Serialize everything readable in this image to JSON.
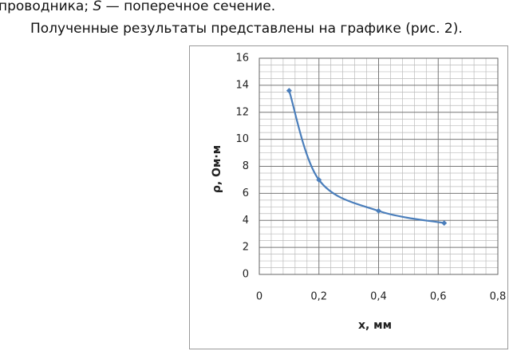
{
  "document": {
    "line1": {
      "before": "проводника; ",
      "italic": "S",
      "after": " — поперечное сечение."
    },
    "line2": "Полученные результаты представлены на графике (рис. 2)."
  },
  "chart_data": {
    "type": "line",
    "xlabel": "x, мм",
    "ylabel": "ρ, Ом·м",
    "x": [
      0.1,
      0.2,
      0.4,
      0.62
    ],
    "series": [
      {
        "color": "#4a7ebb",
        "values": [
          13.6,
          7.0,
          4.7,
          3.8
        ]
      }
    ],
    "xlim": [
      0,
      0.8
    ],
    "xticks": [
      0,
      {
        "value": 0.2,
        "label": "0,2"
      },
      {
        "value": 0.4,
        "label": "0,4"
      },
      {
        "value": 0.6,
        "label": "0,6"
      },
      {
        "value": 0.8,
        "label": "0,8"
      }
    ],
    "ylim": [
      0,
      16
    ],
    "yticks": [
      0,
      2,
      4,
      6,
      8,
      10,
      12,
      14,
      16
    ],
    "grid": true,
    "minor_grid": true,
    "smooth": true
  }
}
